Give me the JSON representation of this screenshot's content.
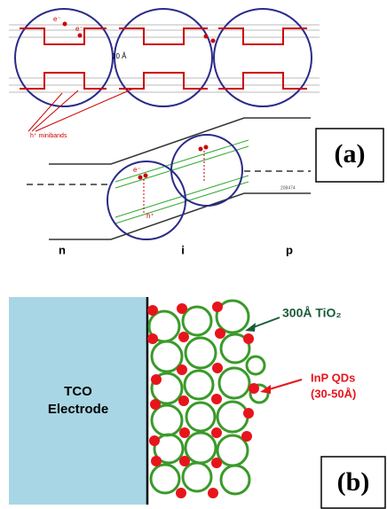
{
  "panel_a": {
    "label": "(a)",
    "spacing": "10 Å",
    "electron": "e⁻",
    "hole": "h⁺",
    "minibands": "h⁺ minibands",
    "regions": [
      "n",
      "i",
      "p"
    ],
    "code": "208474"
  },
  "panel_b": {
    "label": "(b)",
    "electrode": [
      "TCO",
      "Electrode"
    ],
    "tio2": "300Å TiO₂",
    "qds": [
      "InP  QDs",
      "(30-50Å)"
    ]
  }
}
